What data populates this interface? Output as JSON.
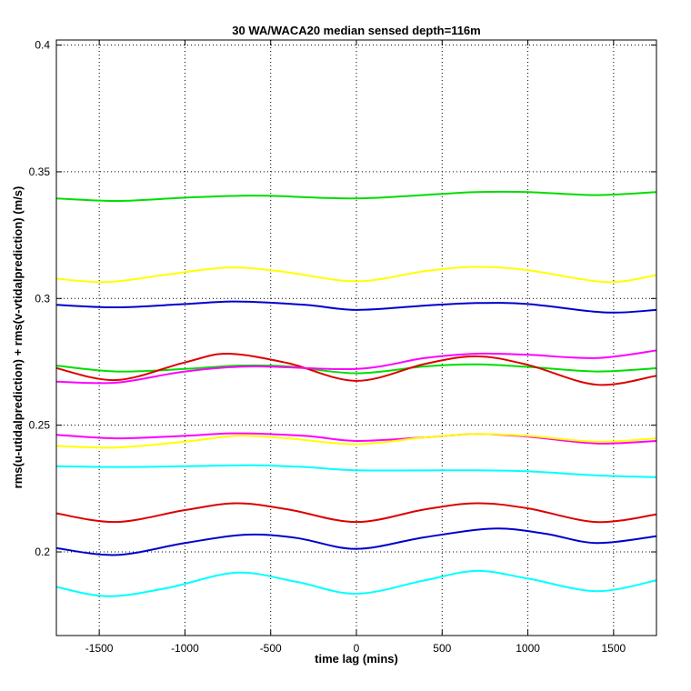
{
  "chart_data": {
    "type": "line",
    "title": "30 WA/WACA20 median sensed depth=116m",
    "xlabel": "time lag (mins)",
    "ylabel": "rms(u-utidalprediction) + rms(v-vtidalprediction) (m/s)",
    "xlim": [
      -1750,
      1750
    ],
    "ylim": [
      0.167,
      0.402
    ],
    "xticks": [
      -1500,
      -1000,
      -500,
      0,
      500,
      1000,
      1500
    ],
    "xtick_labels": [
      "-1500",
      "-1000",
      "-500",
      "0",
      "500",
      "1000",
      "1500"
    ],
    "yticks": [
      0.2,
      0.25,
      0.3,
      0.35,
      0.4
    ],
    "ytick_labels": [
      "0.2",
      "0.25",
      "0.3",
      "0.35",
      "0.4"
    ],
    "grid": true,
    "grid_style": "dotted",
    "legend": "none",
    "colors": {
      "green": "#00dd00",
      "yellow": "#ffff00",
      "blue": "#0000cc",
      "magenta": "#ff00ff",
      "red": "#dd0000",
      "cyan": "#00ffff"
    },
    "series": [
      {
        "color": "#00dd00",
        "x": [
          -1750,
          -1400,
          -1000,
          -700,
          -500,
          0,
          500,
          700,
          1000,
          1400,
          1750
        ],
        "values": [
          0.3395,
          0.3385,
          0.3398,
          0.3405,
          0.3405,
          0.3395,
          0.3413,
          0.342,
          0.342,
          0.3408,
          0.342
        ]
      },
      {
        "color": "#ffff00",
        "x": [
          -1750,
          -1450,
          -1100,
          -750,
          -450,
          0,
          400,
          700,
          1000,
          1450,
          1750
        ],
        "values": [
          0.3078,
          0.3065,
          0.3095,
          0.3122,
          0.3108,
          0.3068,
          0.3108,
          0.3125,
          0.3112,
          0.3065,
          0.3092
        ]
      },
      {
        "color": "#0000cc",
        "x": [
          -1750,
          -1400,
          -1000,
          -700,
          -300,
          0,
          400,
          700,
          1000,
          1450,
          1750
        ],
        "values": [
          0.2975,
          0.2965,
          0.2978,
          0.2988,
          0.2975,
          0.2955,
          0.2972,
          0.2982,
          0.2978,
          0.2945,
          0.2955
        ]
      },
      {
        "color": "#00dd00",
        "x": [
          -1750,
          -1400,
          -1000,
          -700,
          -400,
          0,
          400,
          700,
          1000,
          1400,
          1750
        ],
        "values": [
          0.2735,
          0.2712,
          0.2722,
          0.2735,
          0.2732,
          0.2705,
          0.2732,
          0.274,
          0.273,
          0.2712,
          0.2725
        ]
      },
      {
        "color": "#dd0000",
        "x": [
          -1750,
          -1400,
          -1000,
          -750,
          -400,
          0,
          400,
          700,
          1000,
          1400,
          1750
        ],
        "values": [
          0.2725,
          0.2678,
          0.2748,
          0.2782,
          0.2745,
          0.2675,
          0.2742,
          0.2772,
          0.2738,
          0.266,
          0.2695
        ]
      },
      {
        "color": "#ff00ff",
        "x": [
          -1750,
          -1400,
          -1000,
          -600,
          0,
          400,
          700,
          1000,
          1400,
          1750
        ],
        "values": [
          0.2672,
          0.2668,
          0.2712,
          0.2732,
          0.2722,
          0.2765,
          0.2782,
          0.2778,
          0.2765,
          0.2795
        ]
      },
      {
        "color": "#ff00ff",
        "x": [
          -1750,
          -1400,
          -1000,
          -700,
          -300,
          0,
          400,
          700,
          1000,
          1400,
          1750
        ],
        "values": [
          0.2462,
          0.2448,
          0.2458,
          0.2468,
          0.2458,
          0.2438,
          0.2452,
          0.2465,
          0.2455,
          0.2428,
          0.2438
        ]
      },
      {
        "color": "#ffff00",
        "x": [
          -1750,
          -1400,
          -1000,
          -700,
          -400,
          0,
          400,
          700,
          1000,
          1400,
          1750
        ],
        "values": [
          0.2418,
          0.2412,
          0.2435,
          0.2458,
          0.2448,
          0.2425,
          0.2452,
          0.2465,
          0.2458,
          0.2435,
          0.2448
        ]
      },
      {
        "color": "#00ffff",
        "x": [
          -1750,
          -1400,
          -1000,
          -600,
          -300,
          0,
          500,
          700,
          1000,
          1400,
          1750
        ],
        "values": [
          0.2338,
          0.2335,
          0.2338,
          0.2342,
          0.2335,
          0.2322,
          0.2322,
          0.2322,
          0.2318,
          0.2302,
          0.2295
        ]
      },
      {
        "color": "#dd0000",
        "x": [
          -1750,
          -1400,
          -1000,
          -700,
          -400,
          0,
          400,
          700,
          1000,
          1400,
          1750
        ],
        "values": [
          0.2152,
          0.2118,
          0.2165,
          0.2192,
          0.2168,
          0.2118,
          0.2168,
          0.2192,
          0.2172,
          0.2118,
          0.2148
        ]
      },
      {
        "color": "#0000cc",
        "x": [
          -1750,
          -1400,
          -1000,
          -650,
          -350,
          0,
          400,
          800,
          1100,
          1400,
          1750
        ],
        "values": [
          0.2015,
          0.1988,
          0.2035,
          0.2068,
          0.2055,
          0.2012,
          0.2058,
          0.2092,
          0.2072,
          0.2035,
          0.2062
        ]
      },
      {
        "color": "#00ffff",
        "x": [
          -1750,
          -1450,
          -1100,
          -700,
          -350,
          0,
          400,
          700,
          1000,
          1400,
          1750
        ],
        "values": [
          0.1862,
          0.1825,
          0.1858,
          0.1918,
          0.1882,
          0.1835,
          0.1888,
          0.1925,
          0.1895,
          0.1845,
          0.1888
        ]
      }
    ]
  }
}
